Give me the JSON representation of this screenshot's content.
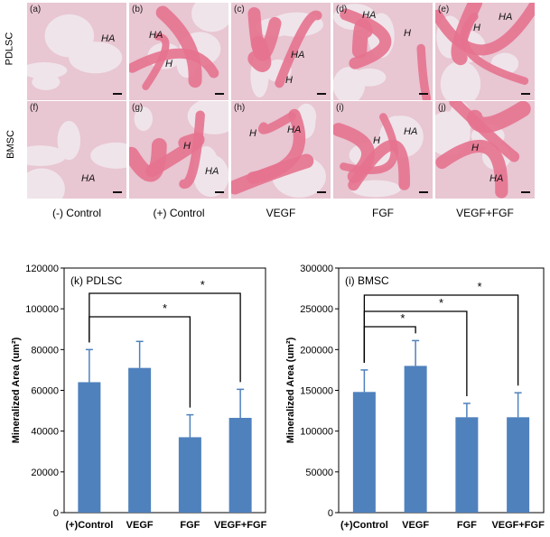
{
  "histology": {
    "row_labels": [
      "PDLSC",
      "BMSC"
    ],
    "condition_labels": [
      "(-) Control",
      "(+) Control",
      "VEGF",
      "FGF",
      "VEGF+FGF"
    ],
    "panels": [
      {
        "letter": "(a)",
        "labels": [
          "HA"
        ]
      },
      {
        "letter": "(b)",
        "labels": [
          "HA",
          "H"
        ]
      },
      {
        "letter": "(c)",
        "labels": [
          "HA",
          "H"
        ]
      },
      {
        "letter": "(d)",
        "labels": [
          "HA",
          "H"
        ]
      },
      {
        "letter": "(e)",
        "labels": [
          "HA",
          "H"
        ]
      },
      {
        "letter": "(f)",
        "labels": [
          "HA"
        ]
      },
      {
        "letter": "(g)",
        "labels": [
          "H",
          "HA"
        ]
      },
      {
        "letter": "(h)",
        "labels": [
          "H",
          "HA"
        ]
      },
      {
        "letter": "(i)",
        "labels": [
          "H",
          "HA"
        ]
      },
      {
        "letter": "(j)",
        "labels": [
          "H",
          "HA"
        ]
      }
    ],
    "colors": {
      "tissue": "#e8c6d2",
      "bone": "#e5728f",
      "scaffold": "#efe4ea"
    }
  },
  "chart_data": [
    {
      "type": "bar",
      "title": "(k) PDLSC",
      "ylabel": "Mineralized Area (um²)",
      "categories": [
        "(+)Control",
        "VEGF",
        "FGF",
        "VEGF+FGF"
      ],
      "values": [
        64000,
        71000,
        37000,
        46500
      ],
      "errors": [
        16000,
        13000,
        11000,
        14000
      ],
      "ylim": [
        0,
        120000
      ],
      "yticks": [
        "0",
        "20000",
        "40000",
        "60000",
        "80000",
        "100000",
        "120000"
      ],
      "significance": [
        {
          "from": 0,
          "to": 2,
          "label": "*"
        },
        {
          "from": 0,
          "to": 3,
          "label": "*"
        }
      ],
      "bar_color": "#4f81bd"
    },
    {
      "type": "bar",
      "title": "(i) BMSC",
      "ylabel": "Mineralized Area (um²)",
      "categories": [
        "(+)Control",
        "VEGF",
        "FGF",
        "VEGF+FGF"
      ],
      "values": [
        148000,
        180000,
        117000,
        117000
      ],
      "errors": [
        27000,
        31000,
        17000,
        30000
      ],
      "ylim": [
        0,
        300000
      ],
      "yticks": [
        "0",
        "50000",
        "100000",
        "150000",
        "200000",
        "250000",
        "300000"
      ],
      "significance": [
        {
          "from": 0,
          "to": 1,
          "label": "*"
        },
        {
          "from": 0,
          "to": 2,
          "label": "*"
        },
        {
          "from": 0,
          "to": 3,
          "label": "*"
        }
      ],
      "bar_color": "#4f81bd"
    }
  ]
}
